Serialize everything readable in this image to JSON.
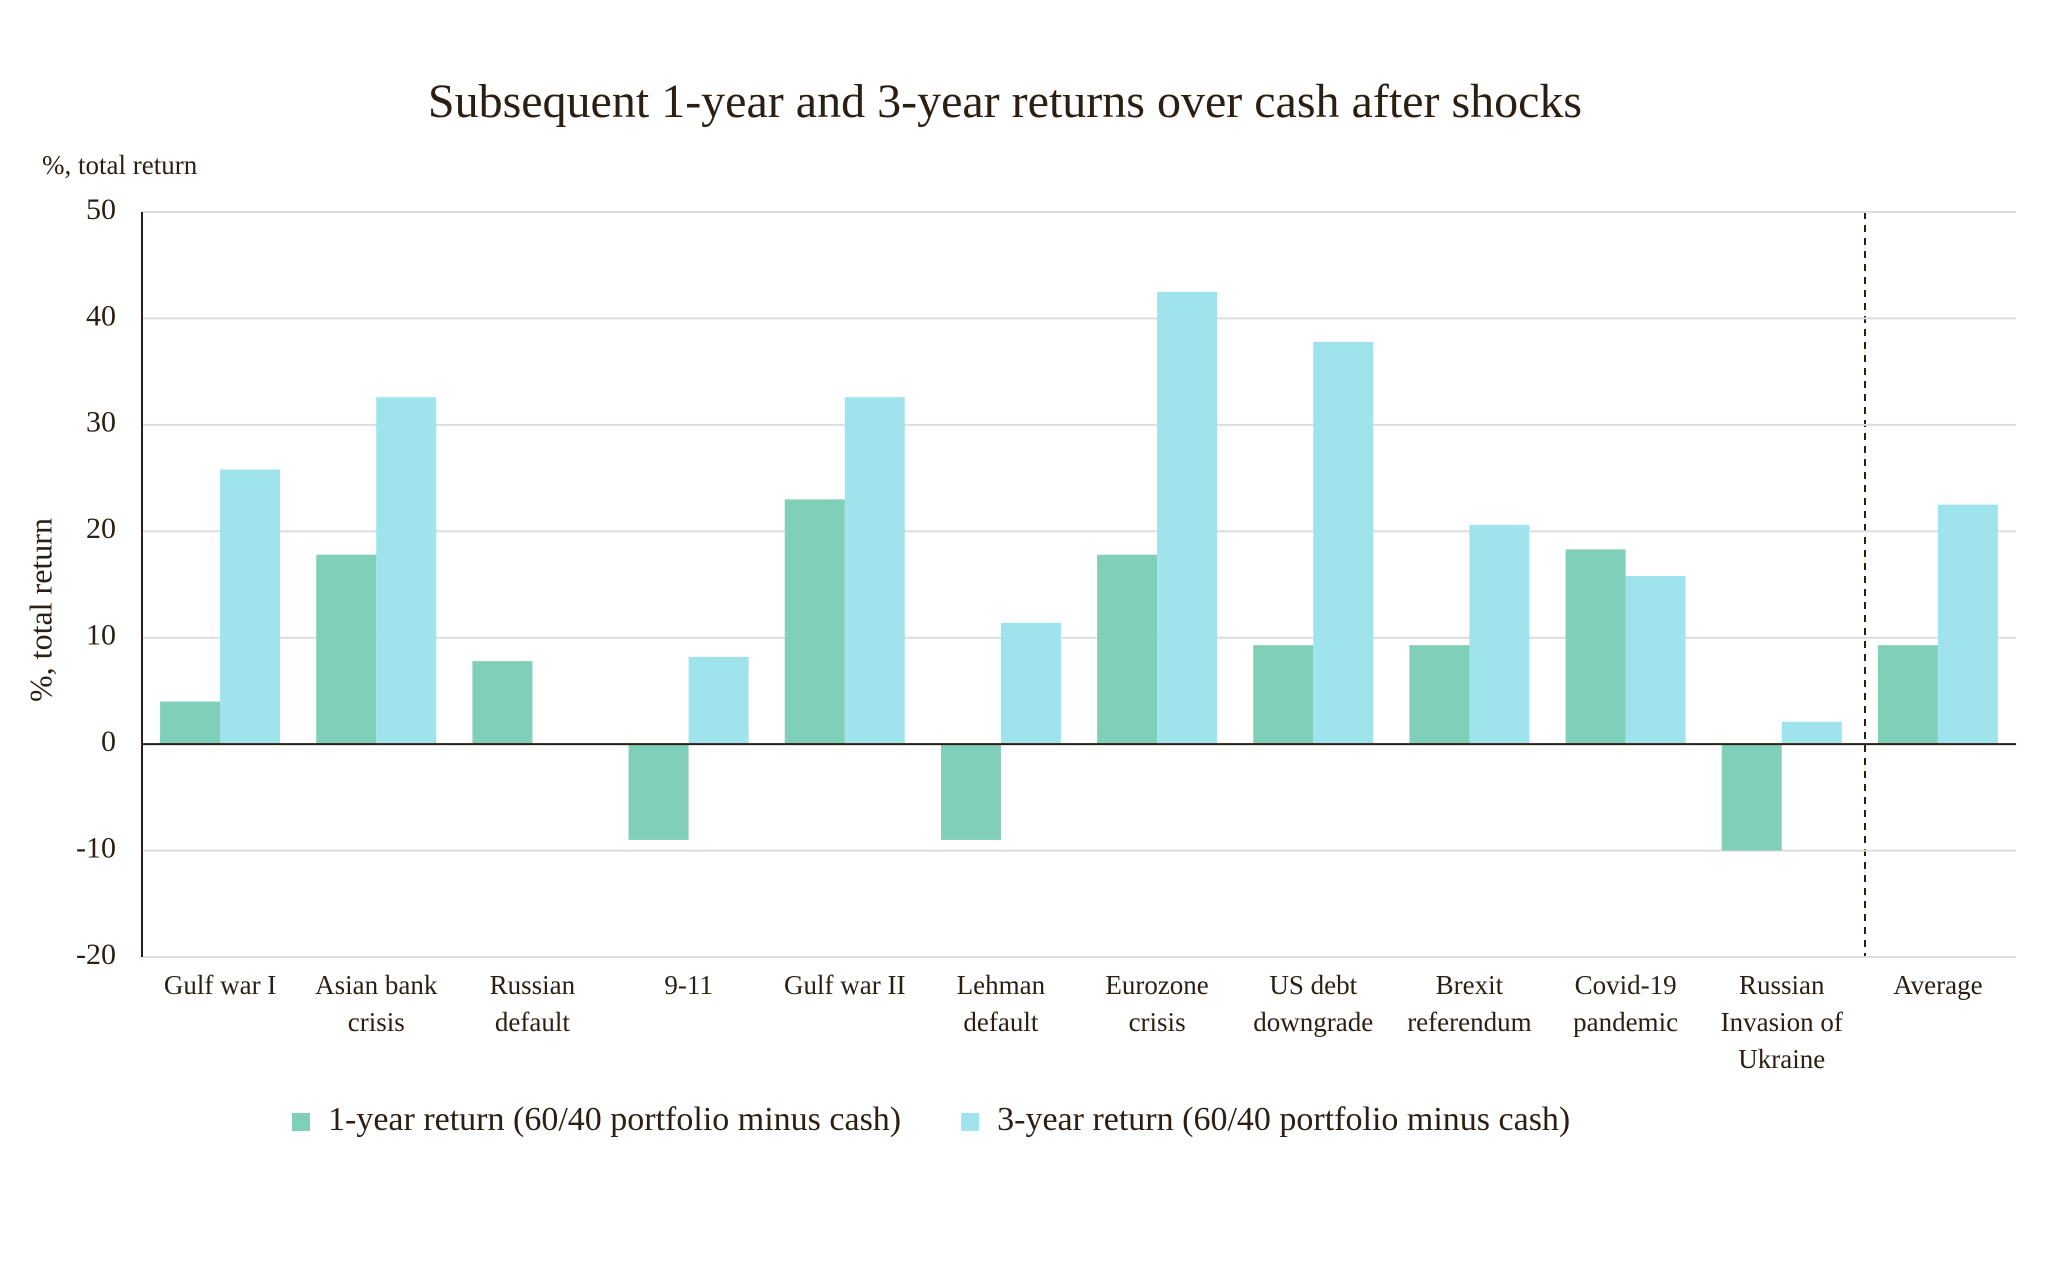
{
  "chart_data": {
    "type": "bar",
    "title": "Subsequent 1-year and 3-year returns over cash after shocks",
    "unit_label": "%, total return",
    "ylabel": "%, total return",
    "categories": [
      "Gulf war I",
      "Asian bank crisis",
      "Russian default",
      "9-11",
      "Gulf war II",
      "Lehman default",
      "Eurozone crisis",
      "US debt downgrade",
      "Brexit referendum",
      "Covid-19 pandemic",
      "Russian Invasion of Ukraine",
      "Average"
    ],
    "series": [
      {
        "name": "1-year return (60/40 portfolio minus cash)",
        "color": "#80cfb9",
        "values": [
          4,
          17.8,
          7.8,
          -9,
          23,
          -9,
          17.8,
          9.3,
          9.3,
          18.3,
          -10,
          9.3
        ]
      },
      {
        "name": "3-year return (60/40 portfolio minus cash)",
        "color": "#9fe4ec",
        "values": [
          25.8,
          32.6,
          null,
          8.2,
          32.6,
          11.4,
          42.5,
          37.8,
          20.6,
          15.8,
          2.1,
          22.5
        ]
      }
    ],
    "ylim": [
      -20,
      50
    ],
    "yticks": [
      -20,
      -10,
      0,
      10,
      20,
      30,
      40,
      50
    ],
    "grid": true
  }
}
